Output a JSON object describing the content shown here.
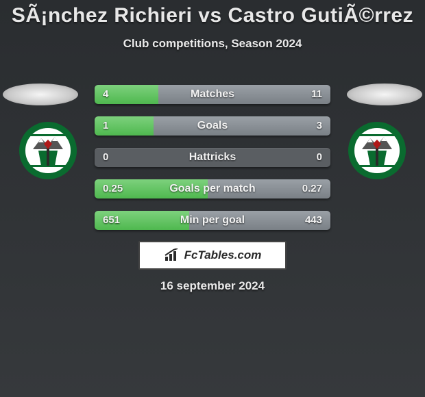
{
  "header": {
    "title": "SÃ¡nchez Richieri vs Castro GutiÃ©rrez",
    "subtitle": "Club competitions, Season 2024"
  },
  "colors": {
    "left_bar": "#4fb84f",
    "right_bar": "#7a8086",
    "row_bg": "#5a5e62",
    "text": "#f0f0f0"
  },
  "stats": [
    {
      "label": "Matches",
      "left_val": "4",
      "right_val": "11",
      "left_pct": 27,
      "right_pct": 73
    },
    {
      "label": "Goals",
      "left_val": "1",
      "right_val": "3",
      "left_pct": 25,
      "right_pct": 75
    },
    {
      "label": "Hattricks",
      "left_val": "0",
      "right_val": "0",
      "left_pct": 0,
      "right_pct": 0
    },
    {
      "label": "Goals per match",
      "left_val": "0.25",
      "right_val": "0.27",
      "left_pct": 48,
      "right_pct": 52
    },
    {
      "label": "Min per goal",
      "left_val": "651",
      "right_val": "443",
      "left_pct": 40,
      "right_pct": 60
    }
  ],
  "branding": {
    "text": "FcTables.com"
  },
  "date": "16 september 2024",
  "crest": {
    "ring_color": "#0a6b2f",
    "inner_color": "#ffffff",
    "axe_color": "#b01818",
    "handle_color": "#2a2a2a",
    "mountain_color": "#555555",
    "snow_color": "#ffffff"
  }
}
